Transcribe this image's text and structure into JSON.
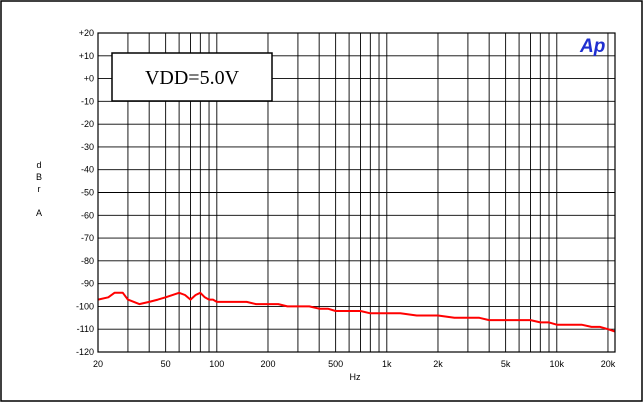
{
  "chart_data": {
    "type": "line",
    "annotation": "VDD=5.0V",
    "logo": "Ap",
    "xlabel": "Hz",
    "ylabel": "d\nB\nr\n\nA",
    "xscale": "log",
    "xlim": [
      20,
      22000
    ],
    "ylim": [
      -120,
      20
    ],
    "x_ticks": [
      20,
      50,
      100,
      200,
      500,
      1000,
      2000,
      5000,
      10000,
      20000
    ],
    "x_tick_labels": [
      "20",
      "50",
      "100",
      "200",
      "500",
      "1k",
      "2k",
      "5k",
      "10k",
      "20k"
    ],
    "y_ticks": [
      20,
      10,
      0,
      -10,
      -20,
      -30,
      -40,
      -50,
      -60,
      -70,
      -80,
      -90,
      -100,
      -110,
      -120
    ],
    "y_tick_labels": [
      "+20",
      "+10",
      "+0",
      "-10",
      "-20",
      "-30",
      "-40",
      "-50",
      "-60",
      "-70",
      "-80",
      "-90",
      "-100",
      "-110",
      "-120"
    ],
    "grid": true,
    "series": [
      {
        "color": "#ff0000",
        "x": [
          20,
          23,
          25,
          28,
          30,
          35,
          40,
          45,
          50,
          60,
          65,
          70,
          75,
          80,
          85,
          90,
          95,
          100,
          110,
          120,
          150,
          170,
          200,
          230,
          260,
          300,
          350,
          400,
          450,
          500,
          550,
          600,
          700,
          800,
          900,
          1000,
          1200,
          1500,
          2000,
          2500,
          3000,
          3500,
          4000,
          5000,
          6000,
          7000,
          8000,
          9000,
          10000,
          12000,
          14000,
          16000,
          18000,
          20000,
          22000
        ],
        "y": [
          -97,
          -96,
          -94,
          -94,
          -97,
          -99,
          -98,
          -97,
          -96,
          -94,
          -95,
          -97,
          -95,
          -94,
          -96,
          -97,
          -97,
          -98,
          -98,
          -98,
          -98,
          -99,
          -99,
          -99,
          -100,
          -100,
          -100,
          -101,
          -101,
          -102,
          -102,
          -102,
          -102,
          -103,
          -103,
          -103,
          -103,
          -104,
          -104,
          -105,
          -105,
          -105,
          -106,
          -106,
          -106,
          -106,
          -107,
          -107,
          -108,
          -108,
          -108,
          -109,
          -109,
          -110,
          -111
        ]
      }
    ]
  }
}
